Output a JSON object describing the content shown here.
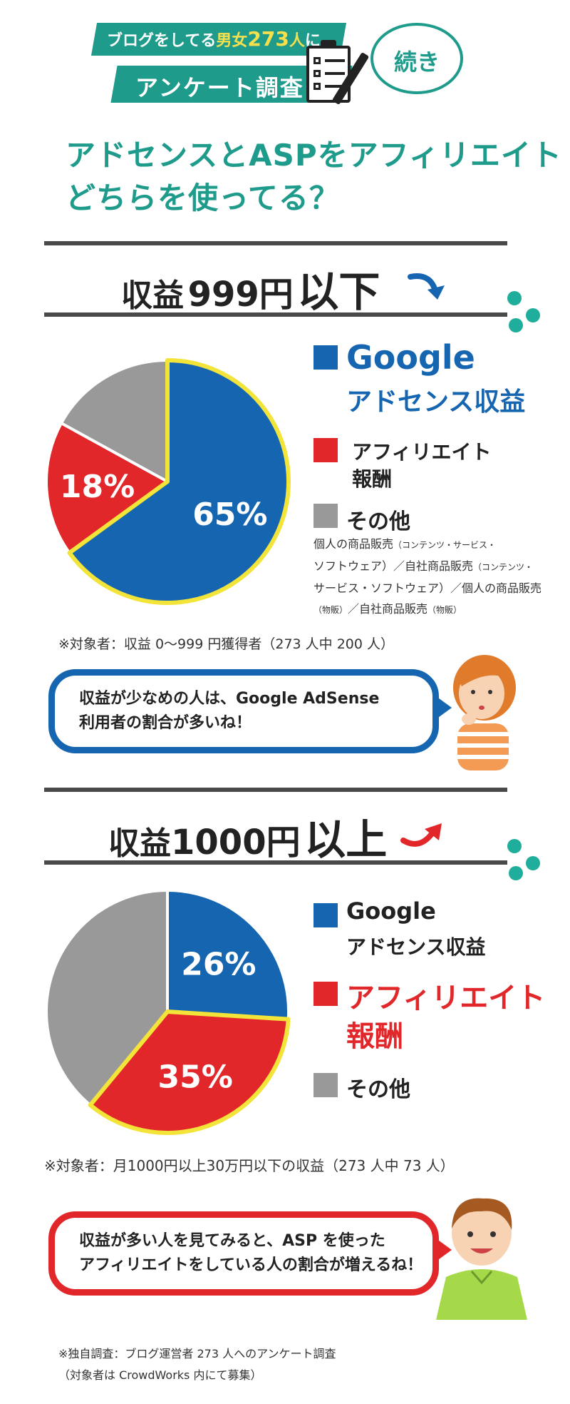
{
  "banner": {
    "line1_a": "ブログをしてる",
    "line1_b": "男女",
    "line1_c": "273",
    "line1_d": "人",
    "line1_e": "に",
    "line2": "アンケート調査",
    "continued": "続き"
  },
  "question": {
    "line1": "アドセンスとASPをアフィリエイト",
    "line2": "どちらを使ってる？"
  },
  "colors": {
    "google": "#1565b0",
    "affiliate": "#e2272b",
    "other": "#999999",
    "edge": "#f3e43a",
    "teal": "#1f9b8c"
  },
  "section1": {
    "title_a": "収益",
    "title_b": "999円",
    "title_c": "以下",
    "legend_google_1": "Google",
    "legend_google_2": "アドセンス収益",
    "legend_aff_1": "アフィリエイト",
    "legend_aff_2": "報酬",
    "legend_other": "その他",
    "other_note_1": "個人の商品販売",
    "other_note_1s": "（コンテンツ・サービス・",
    "other_note_2": "ソフトウェア）／自社商品販売",
    "other_note_2s": "（コンテンツ・",
    "other_note_3": "サービス・ソフトウェア）／個人の商品販売",
    "other_note_4s": "（物販）",
    "other_note_4": "／自社商品販売",
    "other_note_4t": "（物販）",
    "target": "※対象者：収益 0〜999 円獲得者（273 人中 200 人）",
    "comment_1": "収益が少なめの人は、Google AdSense",
    "comment_2": "利用者の割合が多いね！"
  },
  "section2": {
    "title_a": "収益",
    "title_b": "1000円",
    "title_c": "以上",
    "legend_google_1": "Google",
    "legend_google_2": "アドセンス収益",
    "legend_aff_1": "アフィリエイト",
    "legend_aff_2": "報酬",
    "legend_other": "その他",
    "target": "※対象者：月1000円以上30万円以下の収益（273 人中 73 人）",
    "comment_1": "収益が多い人を見てみると、ASP を使った",
    "comment_2": "アフィリエイトをしている人の割合が増えるね！"
  },
  "footer": {
    "line1": "※独自調査：ブログ運営者 273 人へのアンケート調査",
    "line2": "（対象者は CrowdWorks 内にて募集）"
  },
  "chart_data": [
    {
      "type": "pie",
      "title": "収益 999円 以下",
      "categories": [
        "Google アドセンス収益",
        "アフィリエイト報酬",
        "その他"
      ],
      "values": [
        65,
        18,
        17
      ],
      "labels_shown": [
        "65%",
        "18%",
        ""
      ],
      "highlight": "Google アドセンス収益"
    },
    {
      "type": "pie",
      "title": "収益1000円 以上",
      "categories": [
        "Google アドセンス収益",
        "アフィリエイト報酬",
        "その他"
      ],
      "values": [
        26,
        35,
        39
      ],
      "labels_shown": [
        "26%",
        "35%",
        ""
      ],
      "highlight": "アフィリエイト報酬"
    }
  ]
}
